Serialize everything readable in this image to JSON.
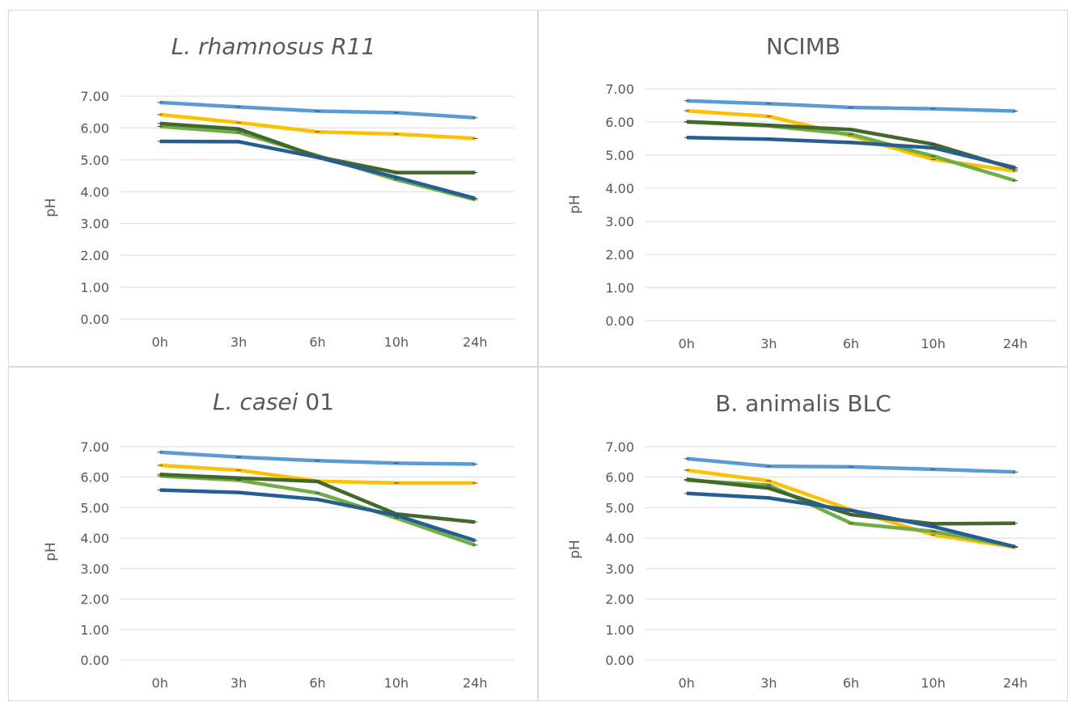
{
  "chart_data": [
    {
      "type": "line",
      "title": "L. rhamnosus R11",
      "title_italic": true,
      "ylabel": "pH",
      "xlabel": "",
      "categories": [
        "0h",
        "3h",
        "6h",
        "10h",
        "24h"
      ],
      "ylim": [
        0,
        7
      ],
      "yticks": [
        "0.00",
        "1.00",
        "2.00",
        "3.00",
        "4.00",
        "5.00",
        "6.00",
        "7.00"
      ],
      "grid": true,
      "series": [
        {
          "color": "#5b9bd5",
          "values": [
            6.8,
            6.66,
            6.53,
            6.48,
            6.32
          ]
        },
        {
          "color": "#ffc000",
          "values": [
            6.42,
            6.17,
            5.88,
            5.81,
            5.67
          ]
        },
        {
          "color": "#70ad47",
          "values": [
            6.05,
            5.86,
            5.13,
            4.38,
            3.75
          ]
        },
        {
          "color": "#43682b",
          "values": [
            6.14,
            5.97,
            5.1,
            4.6,
            4.6
          ]
        },
        {
          "color": "#255e91",
          "values": [
            5.58,
            5.57,
            5.08,
            4.45,
            3.79
          ]
        }
      ]
    },
    {
      "type": "line",
      "title": "NCIMB",
      "title_italic": false,
      "ylabel": "pH",
      "xlabel": "",
      "categories": [
        "0h",
        "3h",
        "6h",
        "10h",
        "24h"
      ],
      "ylim": [
        0,
        7
      ],
      "yticks": [
        "0.00",
        "1.00",
        "2.00",
        "3.00",
        "4.00",
        "5.00",
        "6.00",
        "7.00"
      ],
      "grid": true,
      "series": [
        {
          "color": "#5b9bd5",
          "values": [
            6.64,
            6.55,
            6.44,
            6.4,
            6.33
          ]
        },
        {
          "color": "#ffc000",
          "values": [
            6.34,
            6.17,
            5.58,
            4.87,
            4.52
          ]
        },
        {
          "color": "#70ad47",
          "values": [
            6.0,
            5.88,
            5.63,
            4.97,
            4.23
          ]
        },
        {
          "color": "#43682b",
          "values": [
            6.01,
            5.9,
            5.77,
            5.33,
            4.58
          ]
        },
        {
          "color": "#255e91",
          "values": [
            5.53,
            5.48,
            5.38,
            5.22,
            4.62
          ]
        }
      ]
    },
    {
      "type": "line",
      "title": "L. casei 01",
      "title_italic_part": "L. casei",
      "title_plain_part": " 01",
      "ylabel": "pH",
      "xlabel": "",
      "categories": [
        "0h",
        "3h",
        "6h",
        "10h",
        "24h"
      ],
      "ylim": [
        0,
        7
      ],
      "yticks": [
        "0.00",
        "1.00",
        "2.00",
        "3.00",
        "4.00",
        "5.00",
        "6.00",
        "7.00"
      ],
      "grid": true,
      "series": [
        {
          "color": "#5b9bd5",
          "values": [
            6.82,
            6.66,
            6.54,
            6.46,
            6.43
          ]
        },
        {
          "color": "#ffc000",
          "values": [
            6.39,
            6.23,
            5.87,
            5.81,
            5.81
          ]
        },
        {
          "color": "#70ad47",
          "values": [
            6.04,
            5.9,
            5.48,
            4.66,
            3.77
          ]
        },
        {
          "color": "#43682b",
          "values": [
            6.09,
            5.97,
            5.86,
            4.79,
            4.53
          ]
        },
        {
          "color": "#255e91",
          "values": [
            5.58,
            5.5,
            5.27,
            4.75,
            3.92
          ]
        }
      ]
    },
    {
      "type": "line",
      "title": "B. animalis BLC",
      "title_italic": false,
      "ylabel": "pH",
      "xlabel": "",
      "categories": [
        "0h",
        "3h",
        "6h",
        "10h",
        "24h"
      ],
      "ylim": [
        0,
        7
      ],
      "yticks": [
        "0.00",
        "1.00",
        "2.00",
        "3.00",
        "4.00",
        "5.00",
        "6.00",
        "7.00"
      ],
      "grid": true,
      "series": [
        {
          "color": "#5b9bd5",
          "values": [
            6.61,
            6.36,
            6.34,
            6.26,
            6.17
          ]
        },
        {
          "color": "#ffc000",
          "values": [
            6.23,
            5.88,
            4.93,
            4.11,
            3.7
          ]
        },
        {
          "color": "#70ad47",
          "values": [
            5.9,
            5.74,
            4.49,
            4.22,
            3.72
          ]
        },
        {
          "color": "#43682b",
          "values": [
            5.93,
            5.64,
            4.77,
            4.47,
            4.49
          ]
        },
        {
          "color": "#255e91",
          "values": [
            5.47,
            5.32,
            4.91,
            4.38,
            3.71
          ]
        }
      ]
    }
  ]
}
